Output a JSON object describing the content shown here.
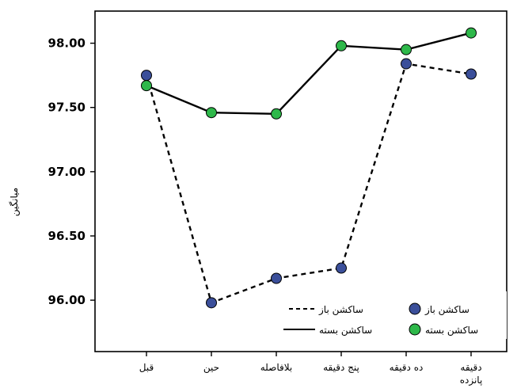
{
  "chart_data": {
    "type": "line",
    "ylabel": "میانگین",
    "xlabel": "",
    "categories": [
      "قبل",
      "حین",
      "بلافاصله",
      "پنج دقیقه",
      "ده دقیقه",
      "دقیقه پانزده"
    ],
    "yticks": [
      "96.00",
      "96.50",
      "97.00",
      "97.50",
      "98.00"
    ],
    "ylim": [
      95.6,
      98.25
    ],
    "series": [
      {
        "name": "ساکشن باز",
        "values": [
          97.75,
          95.98,
          96.17,
          96.25,
          97.84,
          97.76
        ],
        "marker_color": "#3b4f9a",
        "line_style": "dashed"
      },
      {
        "name": "ساکشن بسته",
        "values": [
          97.67,
          97.46,
          97.45,
          97.98,
          97.95,
          98.08
        ],
        "marker_color": "#2eb84a",
        "line_style": "solid"
      }
    ],
    "legend": {
      "position": "bottom-right",
      "marker_entries": [
        "ساکشن باز",
        "ساکشن بسته"
      ],
      "line_entries": [
        "ساکشن باز",
        "ساکشن بسته"
      ]
    },
    "grid": false
  }
}
